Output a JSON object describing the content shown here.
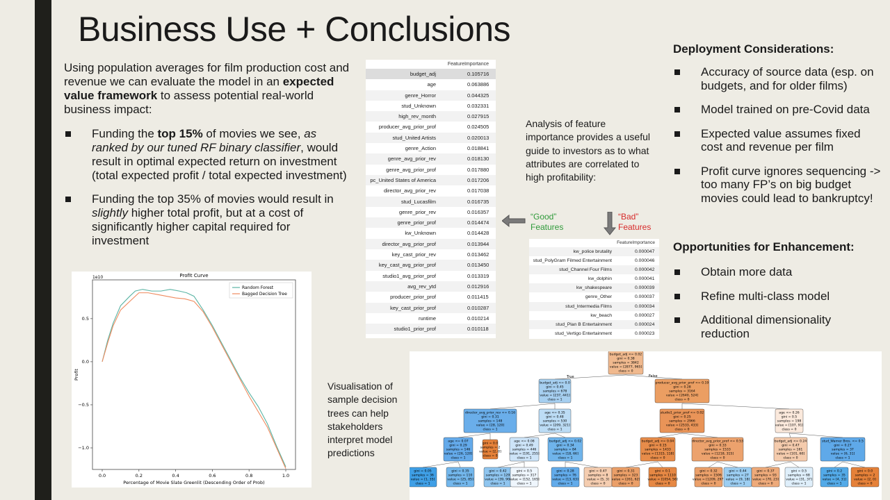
{
  "title": "Business Use + Conclusions",
  "intro": {
    "before": "Using population averages for film production cost and revenue we can evaluate the model in an ",
    "bold": "expected value framework",
    "after": " to assess potential real-world business impact:"
  },
  "bullets": [
    {
      "pre": "Funding the ",
      "bold": "top 15%",
      "mid": " of movies we see, ",
      "italic": "as ranked by our tuned RF binary classifier",
      "post": ", would result in optimal expected return on investment (total expected profit / total expected investment)"
    },
    {
      "pre": "Funding the top 35% of movies would result in ",
      "italic": "slightly",
      "post": " higher total profit, but at a cost of significantly higher capital required for investment"
    }
  ],
  "profit_chart": {
    "chart_data": {
      "type": "line",
      "title": "Profit Curve",
      "xlabel": "Percentage of Movie Slate Greenlit (Descending Order of Prob)",
      "ylabel": "Profit",
      "y_multiplier": "1e10",
      "xlim": [
        0,
        1
      ],
      "ylim": [
        -1.25,
        0.95
      ],
      "xticks": [
        "0.0",
        "0.2",
        "0.4",
        "0.6",
        "0.8",
        "1.0"
      ],
      "yticks": [
        "−1.0",
        "−0.5",
        "0.0",
        "0.5"
      ],
      "legend_position": "top-right",
      "series": [
        {
          "name": "Random Forest",
          "color": "#5ab4a4",
          "x": [
            0,
            0.03,
            0.06,
            0.1,
            0.15,
            0.18,
            0.22,
            0.27,
            0.32,
            0.37,
            0.42,
            0.46,
            0.5,
            0.55,
            0.6,
            0.65,
            0.7,
            0.75,
            0.8,
            0.85,
            0.9,
            0.95,
            1.0
          ],
          "y": [
            0,
            0.25,
            0.45,
            0.65,
            0.76,
            0.82,
            0.84,
            0.82,
            0.82,
            0.84,
            0.82,
            0.8,
            0.76,
            0.6,
            0.42,
            0.22,
            0.02,
            -0.18,
            -0.36,
            -0.52,
            -0.72,
            -0.98,
            -1.22
          ]
        },
        {
          "name": "Bagged Decision Tree",
          "color": "#ef8a5e",
          "x": [
            0,
            0.03,
            0.06,
            0.1,
            0.15,
            0.2,
            0.25,
            0.3,
            0.35,
            0.4,
            0.45,
            0.5,
            0.55,
            0.6,
            0.65,
            0.7,
            0.75,
            0.8,
            0.85,
            0.9,
            0.95,
            1.0
          ],
          "y": [
            0,
            0.22,
            0.42,
            0.6,
            0.7,
            0.8,
            0.8,
            0.78,
            0.76,
            0.74,
            0.73,
            0.7,
            0.58,
            0.4,
            0.2,
            0.0,
            -0.2,
            -0.4,
            -0.58,
            -0.76,
            -1.0,
            -1.24
          ]
        }
      ]
    }
  },
  "feature_table": {
    "header": "FeatureImportance",
    "rows": [
      [
        "budget_adj",
        "0.105716"
      ],
      [
        "age",
        "0.063886"
      ],
      [
        "genre_Horror",
        "0.044325"
      ],
      [
        "stud_Unknown",
        "0.032331"
      ],
      [
        "high_rev_month",
        "0.027915"
      ],
      [
        "producer_avg_prior_prof",
        "0.024505"
      ],
      [
        "stud_United Artists",
        "0.020013"
      ],
      [
        "genre_Action",
        "0.018841"
      ],
      [
        "genre_avg_prior_rev",
        "0.018130"
      ],
      [
        "genre_avg_prior_prof",
        "0.017880"
      ],
      [
        "pc_United States of America",
        "0.017206"
      ],
      [
        "director_avg_prior_rev",
        "0.017038"
      ],
      [
        "stud_Lucasfilm",
        "0.016735"
      ],
      [
        "genre_prior_rev",
        "0.016357"
      ],
      [
        "genre_prior_prof",
        "0.014474"
      ],
      [
        "kw_Unknown",
        "0.014428"
      ],
      [
        "director_avg_prior_prof",
        "0.013944"
      ],
      [
        "key_cast_prior_rev",
        "0.013462"
      ],
      [
        "key_cast_avg_prior_prof",
        "0.013450"
      ],
      [
        "studio1_avg_prior_prof",
        "0.013319"
      ],
      [
        "avg_rev_ytd",
        "0.012916"
      ],
      [
        "producer_prior_prof",
        "0.011415"
      ],
      [
        "key_cast_prior_prof",
        "0.010287"
      ],
      [
        "runtime",
        "0.010214"
      ],
      [
        "studio1_prior_prof",
        "0.010118"
      ]
    ]
  },
  "analysis_text": "Analysis of feature importance provides a useful guide to investors as to what attributes are correlated to high profitability:",
  "good_label": "“Good”\nFeatures",
  "bad_label": "“Bad”\nFeatures",
  "bad_table": {
    "header": "FeatureImportance",
    "rows": [
      [
        "kw_police brutality",
        "0.000047"
      ],
      [
        "stud_PolyGram Filmed Entertainment",
        "0.000046"
      ],
      [
        "stud_Channel Four Films",
        "0.000042"
      ],
      [
        "kw_dolphin",
        "0.000041"
      ],
      [
        "kw_shakespeare",
        "0.000039"
      ],
      [
        "genre_Other",
        "0.000037"
      ],
      [
        "stud_Intermedia Films",
        "0.000034"
      ],
      [
        "kw_beach",
        "0.000027"
      ],
      [
        "stud_Plan B Entertainment",
        "0.000024"
      ],
      [
        "stud_Vertigo Entertainment",
        "0.000023"
      ]
    ]
  },
  "deployment": {
    "heading": "Deployment Considerations:",
    "items": [
      "Accuracy of source data (esp. on budgets, and for older films)",
      "Model trained on pre-Covid data",
      "Expected value  assumes fixed cost and revenue per film",
      "Profit curve ignores sequencing -> too many FP’s on big budget movies could lead to bankruptcy!"
    ]
  },
  "opportunities": {
    "heading": "Opportunities for Enhancement:",
    "items": [
      "Obtain more data",
      "Refine multi-class model",
      "Additional dimensionality reduction"
    ]
  },
  "tree_caption": "Visualisation of sample decision trees can help stakeholders interpret model predictions",
  "tree": {
    "true_label": "True",
    "false_label": "False",
    "nodes": [
      {
        "id": "root",
        "lines": [
          "budget_adj <= 0.02",
          "gini = 0.38",
          "samples = 3842",
          "value = [2877, 965]",
          "class = 0"
        ],
        "color": "#f0b98e"
      },
      {
        "id": "l1",
        "lines": [
          "budget_adj <= 0.0",
          "gini = 0.45",
          "samples = 678",
          "value = [237, 441]",
          "class = 1"
        ],
        "color": "#a6cff0"
      },
      {
        "id": "r1",
        "lines": [
          "producer_avg_prior_prof <= 0.19",
          "gini = 0.28",
          "samples = 3164",
          "value = [2640, 524]",
          "class = 0"
        ],
        "color": "#eb9e62"
      },
      {
        "id": "l2a",
        "lines": [
          "director_avg_prior_rev <= 0.16",
          "gini = 0.31",
          "samples = 148",
          "value = [28, 120]",
          "class = 1"
        ],
        "color": "#6aaeea"
      },
      {
        "id": "l2b",
        "lines": [
          "age <= 0.35",
          "gini = 0.48",
          "samples = 530",
          "value = [209, 321]",
          "class = 1"
        ],
        "color": "#bcdcf5"
      },
      {
        "id": "r2a",
        "lines": [
          "studio1_prior_prof <= 0.02",
          "gini = 0.25",
          "samples = 2966",
          "value = [2533, 433]",
          "class = 0"
        ],
        "color": "#e99458"
      },
      {
        "id": "r2b",
        "lines": [
          "age <= 0.26",
          "gini = 0.5",
          "samples = 198",
          "value = [107, 91]",
          "class = 0"
        ],
        "color": "#fbe9dc"
      },
      {
        "id": "l3a",
        "lines": [
          "age <= 0.07",
          "gini = 0.29",
          "samples = 146",
          "value = [26, 120]",
          "class = 1"
        ],
        "color": "#64aaea"
      },
      {
        "id": "l3b",
        "lines": [
          "gini = 0.0",
          "samples = 2",
          "value = [2, 0]",
          "class = 0"
        ],
        "color": "#e58139"
      },
      {
        "id": "l3c",
        "lines": [
          "age <= 0.08",
          "gini = 0.49",
          "samples = 446",
          "value = [191, 255]",
          "class = 1"
        ],
        "color": "#cde4f8"
      },
      {
        "id": "l3d",
        "lines": [
          "budget_adj <= 0.02",
          "gini = 0.34",
          "samples = 84",
          "value = [18, 66]",
          "class = 1"
        ],
        "color": "#6fb4eb"
      },
      {
        "id": "r3a",
        "lines": [
          "budget_adj <= 0.04",
          "gini = 0.15",
          "samples = 1433",
          "value = [1315, 118]",
          "class = 0"
        ],
        "color": "#e78c4a"
      },
      {
        "id": "r3b",
        "lines": [
          "director_avg_prior_prof <= 0.53",
          "gini = 0.33",
          "samples = 1533",
          "value = [1218, 315]",
          "class = 0"
        ],
        "color": "#eca26d"
      },
      {
        "id": "r3c",
        "lines": [
          "budget_adj <= 0.24",
          "gini = 0.47",
          "samples = 161",
          "value = [101, 60]",
          "class = 0"
        ],
        "color": "#f4cbad"
      },
      {
        "id": "r3d",
        "lines": [
          "stud_Warner Bros. <= 0.5",
          "gini = 0.27",
          "samples = 37",
          "value = [6, 31]",
          "class = 1"
        ],
        "color": "#5fa9e9"
      },
      {
        "id": "a",
        "lines": [
          "gini = 0.05",
          "samples = 36",
          "value = [1, 35]",
          "class = 1"
        ],
        "color": "#3f9fe6"
      },
      {
        "id": "b",
        "lines": [
          "gini = 0.35",
          "samples = 110",
          "value = [25, 85]",
          "class = 1"
        ],
        "color": "#73b7ec"
      },
      {
        "id": "c",
        "lines": [
          "gini = 0.42",
          "samples = 129",
          "value = [39, 90]",
          "class = 1"
        ],
        "color": "#8fc5ef"
      },
      {
        "id": "d",
        "lines": [
          "gini = 0.5",
          "samples = 317",
          "value = [152, 165]",
          "class = 1"
        ],
        "color": "#eff6fd"
      },
      {
        "id": "e",
        "lines": [
          "gini = 0.28",
          "samples = 76",
          "value = [13, 63]",
          "class = 1"
        ],
        "color": "#62abea"
      },
      {
        "id": "f",
        "lines": [
          "gini = 0.47",
          "samples = 8",
          "value = [5, 3]",
          "class = 0"
        ],
        "color": "#f5cdb0"
      },
      {
        "id": "g",
        "lines": [
          "gini = 0.31",
          "samples = 323",
          "value = [261, 62]",
          "class = 0"
        ],
        "color": "#eb9f68"
      },
      {
        "id": "h",
        "lines": [
          "gini = 0.1",
          "samples = 1110",
          "value = [1054, 56]",
          "class = 0"
        ],
        "color": "#e68844"
      },
      {
        "id": "i",
        "lines": [
          "gini = 0.32",
          "samples = 1506",
          "value = [1209, 297]",
          "class = 0"
        ],
        "color": "#eba06a"
      },
      {
        "id": "j",
        "lines": [
          "gini = 0.44",
          "samples = 27",
          "value = [9, 18]",
          "class = 1"
        ],
        "color": "#9ccef2"
      },
      {
        "id": "k",
        "lines": [
          "gini = 0.37",
          "samples = 93",
          "value = [70, 23]",
          "class = 0"
        ],
        "color": "#eeaa7a"
      },
      {
        "id": "l",
        "lines": [
          "gini = 0.5",
          "samples = 68",
          "value = [31, 37]",
          "class = 1"
        ],
        "color": "#dfeffb"
      },
      {
        "id": "m",
        "lines": [
          "gini = 0.2",
          "samples = 35",
          "value = [4, 31]",
          "class = 1"
        ],
        "color": "#53aae8"
      },
      {
        "id": "n",
        "lines": [
          "gini = 0.0",
          "samples = 2",
          "value = [2, 0]",
          "class = 0"
        ],
        "color": "#e58139"
      }
    ]
  }
}
